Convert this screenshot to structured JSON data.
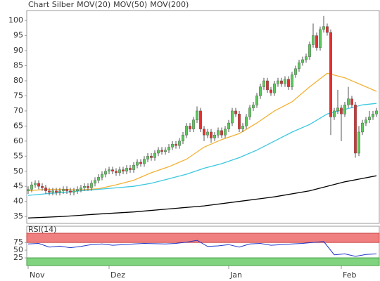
{
  "chart_data": [
    {
      "type": "candlestick",
      "title": "Chart Silber",
      "title_color": "#e8823c",
      "up_color": "#5cc85c",
      "down_color": "#e03030",
      "x": [
        0,
        1,
        2,
        3,
        4,
        5,
        6,
        7,
        8,
        9,
        10,
        11,
        12,
        13,
        14,
        15,
        16,
        17,
        18,
        19,
        20,
        21,
        22,
        23,
        24,
        25,
        26,
        27,
        28,
        29,
        30,
        31,
        32,
        33,
        34,
        35,
        36,
        37,
        38,
        39,
        40,
        41,
        42,
        43,
        44,
        45,
        46,
        47,
        48,
        49,
        50,
        51,
        52,
        53,
        54,
        55,
        56,
        57,
        58,
        59,
        60,
        61,
        62,
        63,
        64,
        65,
        66,
        67,
        68,
        69,
        70,
        71,
        72,
        73,
        74,
        75,
        76,
        77,
        78,
        79,
        80,
        81,
        82,
        83,
        84,
        85,
        86,
        87,
        88,
        89,
        90,
        91,
        92,
        93,
        94,
        95,
        96,
        97,
        98,
        99
      ],
      "open": [
        43.5,
        44,
        45.5,
        46,
        45,
        44.5,
        43.5,
        43,
        43.5,
        43,
        43.5,
        44,
        43.5,
        43,
        43.5,
        44,
        44.5,
        45,
        44.5,
        46,
        47,
        48,
        49,
        50,
        50.5,
        50,
        49.5,
        50.5,
        50,
        51,
        50.5,
        52,
        53,
        52.5,
        54,
        55,
        54.5,
        56,
        57,
        56.5,
        57,
        58,
        59,
        58.5,
        60,
        62,
        65,
        64,
        67,
        70,
        64,
        62,
        63,
        61,
        62,
        63.5,
        62,
        64,
        66,
        70,
        69,
        64,
        65,
        68,
        71,
        72,
        75,
        78,
        80,
        77,
        76,
        79,
        80,
        79,
        80.5,
        78,
        82,
        84,
        86,
        87,
        88,
        92,
        95,
        91,
        97,
        98,
        96,
        68,
        70,
        71,
        69,
        72,
        74,
        72,
        56,
        63,
        66,
        67,
        68,
        69
      ],
      "high": [
        45,
        46.5,
        47,
        47,
        46,
        45.5,
        44.5,
        44.5,
        44.5,
        44.5,
        45,
        45,
        44.5,
        44.5,
        45,
        45.5,
        46,
        46,
        47,
        48,
        49,
        50,
        51,
        51.5,
        51.5,
        51,
        51.5,
        51.5,
        52,
        52,
        53,
        54,
        54,
        55,
        56,
        56,
        57,
        58,
        58,
        58,
        59,
        60,
        60,
        61,
        63,
        66,
        66,
        68,
        71.5,
        71,
        65,
        64,
        64,
        63,
        64.5,
        64.5,
        65,
        67,
        71,
        71,
        70,
        66,
        69,
        72,
        73,
        76,
        79,
        81,
        81,
        78,
        80,
        81,
        81,
        81.5,
        81.5,
        83,
        85,
        87,
        88,
        89,
        93,
        99,
        96,
        98,
        101.5,
        99,
        97,
        71,
        77,
        72,
        73,
        78,
        75,
        73,
        65,
        67,
        68,
        70,
        70,
        71
      ],
      "low": [
        42.5,
        43,
        44.5,
        44,
        43.5,
        42.5,
        42,
        42,
        42,
        42,
        42.5,
        42.5,
        42,
        42,
        42.5,
        43,
        43.5,
        43.5,
        43.5,
        45,
        46,
        47,
        48,
        49,
        49,
        48.5,
        48.5,
        49,
        49,
        49.5,
        49.5,
        51,
        51.5,
        51.5,
        53,
        53.5,
        53.5,
        55,
        55.5,
        55.5,
        56,
        57,
        57.5,
        57.5,
        59,
        61,
        63,
        63,
        66,
        63,
        60,
        61,
        59.5,
        60,
        61,
        61,
        61,
        63,
        65,
        68,
        63,
        63,
        64,
        67,
        70,
        71,
        74,
        77,
        76,
        75,
        75,
        78,
        78,
        78,
        77,
        77,
        81,
        83,
        85,
        86,
        87,
        91,
        90,
        90,
        96,
        95,
        62,
        67,
        69,
        60,
        68,
        71,
        71,
        54.5,
        55,
        62,
        65,
        66,
        67,
        68
      ],
      "close": [
        44,
        45.5,
        46,
        45,
        44.5,
        43.5,
        43,
        43.5,
        43,
        43.5,
        44,
        43.5,
        43,
        43.5,
        44,
        44.5,
        45,
        44.5,
        46,
        47,
        48,
        49,
        50,
        50.5,
        50,
        49.5,
        50.5,
        50,
        51,
        50.5,
        52,
        53,
        52.5,
        54,
        55,
        54.5,
        56,
        57,
        56.5,
        57,
        58,
        59,
        58.5,
        60,
        62,
        65,
        64,
        67,
        70,
        64,
        62,
        63,
        61,
        62,
        63.5,
        62,
        64,
        66,
        70,
        69,
        64,
        65,
        68,
        71,
        72,
        75,
        78,
        80,
        77,
        76,
        79,
        80,
        79,
        80.5,
        78,
        82,
        84,
        86,
        87,
        88,
        92,
        95,
        91,
        97,
        98,
        96,
        68,
        70,
        71,
        69,
        72,
        74,
        72,
        56,
        63,
        66,
        67,
        68,
        69,
        70
      ],
      "series": [
        {
          "name": "MOV(20)",
          "color": "#f2b134",
          "x": [
            0,
            5,
            10,
            15,
            20,
            25,
            30,
            35,
            40,
            45,
            50,
            55,
            60,
            65,
            70,
            75,
            80,
            85,
            90,
            95,
            99
          ],
          "values": [
            43.5,
            44,
            44,
            43.8,
            44.2,
            45.5,
            47,
            49.5,
            51.5,
            54,
            58,
            60.5,
            62.5,
            66,
            70,
            73,
            78,
            82.5,
            81,
            78.5,
            76.5
          ]
        },
        {
          "name": "MOV(50)",
          "color": "#3cc8e0",
          "x": [
            0,
            5,
            10,
            15,
            20,
            25,
            30,
            35,
            40,
            45,
            50,
            55,
            60,
            65,
            70,
            75,
            80,
            85,
            90,
            95,
            99
          ],
          "values": [
            42,
            42.5,
            43,
            43.5,
            44,
            44.5,
            45,
            46,
            47.5,
            49,
            51,
            52.5,
            54.5,
            57,
            60,
            63,
            65.5,
            69,
            70.5,
            72,
            72.5
          ]
        },
        {
          "name": "MOV(200)",
          "color": "#000000",
          "x": [
            0,
            10,
            20,
            30,
            40,
            50,
            60,
            70,
            80,
            90,
            99
          ],
          "values": [
            34.5,
            35,
            35.8,
            36.5,
            37.5,
            38.5,
            40,
            41.5,
            43.5,
            46.5,
            48.5
          ]
        }
      ],
      "xlim": [
        -0.4,
        100
      ],
      "ylim": [
        32.7,
        103.3
      ],
      "yticks": [
        35,
        40,
        45,
        50,
        55,
        60,
        65,
        70,
        75,
        80,
        85,
        90,
        95,
        100
      ]
    },
    {
      "type": "line",
      "title": "RSI(14)",
      "color": "#2036c8",
      "upper_band_color": "#f08080",
      "lower_band_color": "#80d480",
      "x": [
        0,
        3,
        6,
        9,
        12,
        15,
        18,
        21,
        24,
        27,
        30,
        33,
        36,
        39,
        42,
        45,
        48,
        51,
        54,
        57,
        60,
        63,
        66,
        69,
        72,
        75,
        78,
        81,
        84,
        87,
        90,
        93,
        96,
        99
      ],
      "values": [
        70,
        72,
        60,
        63,
        58,
        62,
        68,
        70,
        66,
        68,
        70,
        72,
        71,
        70,
        72,
        76,
        82,
        62,
        64,
        68,
        60,
        70,
        72,
        66,
        68,
        70,
        72,
        75,
        78,
        35,
        38,
        30,
        36,
        38
      ],
      "xlim": [
        -0.4,
        100
      ],
      "ylim": [
        0,
        105
      ],
      "yticks": [
        25,
        50,
        75
      ],
      "xticks": [
        {
          "value": 0,
          "label": "Nov"
        },
        {
          "value": 23,
          "label": "Dez"
        },
        {
          "value": 57,
          "label": "Jan"
        },
        {
          "value": 89,
          "label": "Feb"
        }
      ]
    }
  ]
}
